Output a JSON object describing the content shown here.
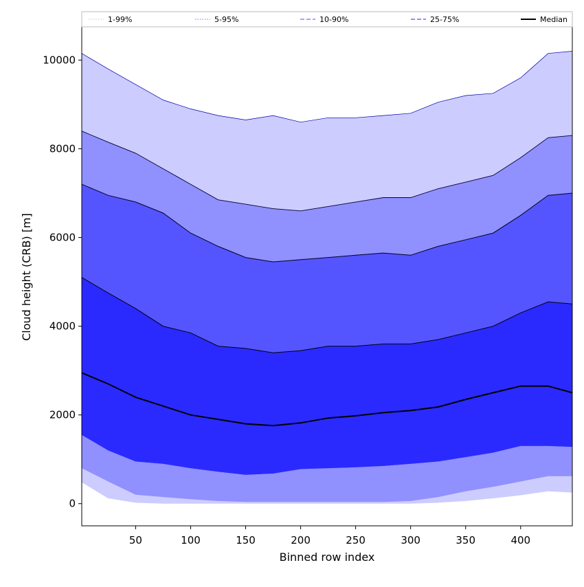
{
  "chart_data": {
    "type": "area",
    "xlabel": "Binned row index",
    "ylabel": "Cloud height (CRB) [m]",
    "xlim": [
      1,
      447
    ],
    "ylim": [
      -500,
      10750
    ],
    "xticks": [
      50,
      100,
      150,
      200,
      250,
      300,
      350,
      400
    ],
    "yticks": [
      0,
      2000,
      4000,
      6000,
      8000,
      10000
    ],
    "legend_position": "top",
    "x": [
      1,
      25,
      50,
      75,
      100,
      125,
      150,
      175,
      200,
      225,
      250,
      275,
      300,
      325,
      350,
      375,
      400,
      425,
      447
    ],
    "bands": [
      {
        "name": "1-99%",
        "color": "#ccccff",
        "lower": [
          480,
          120,
          20,
          0,
          0,
          0,
          0,
          0,
          0,
          0,
          0,
          0,
          0,
          20,
          60,
          120,
          190,
          280,
          250
        ],
        "upper": [
          10150,
          9800,
          9450,
          9100,
          8900,
          8750,
          8650,
          8750,
          8600,
          8700,
          8700,
          8750,
          8800,
          9050,
          9200,
          9250,
          9600,
          10150,
          10200
        ]
      },
      {
        "name": "5-95%",
        "color": "#9090ff",
        "lower": [
          800,
          500,
          200,
          150,
          100,
          60,
          40,
          40,
          40,
          40,
          40,
          40,
          60,
          150,
          280,
          380,
          500,
          620,
          620
        ]
      },
      {
        "name": "10-90%",
        "color": "#5555ff",
        "lower": [
          1550,
          1200,
          950,
          900,
          800,
          720,
          650,
          680,
          780,
          800,
          820,
          850,
          900,
          950,
          1050,
          1150,
          1300,
          1300,
          1280
        ]
      }
    ],
    "quantiles": {
      "p5_upper": [
        8400,
        8150,
        7900,
        7550,
        7200,
        6850,
        6750,
        6650,
        6600,
        6700,
        6800,
        6900,
        6900,
        7100,
        7250,
        7400,
        7800,
        8250,
        8300
      ],
      "p10_upper": [
        7200,
        6950,
        6800,
        6550,
        6100,
        5800,
        5550,
        5450,
        5500,
        5550,
        5600,
        5650,
        5600,
        5800,
        5950,
        6100,
        6500,
        6950,
        7000
      ],
      "p25_lower": [
        5100,
        4750,
        4400,
        4000,
        3850,
        3550,
        3500,
        3400,
        3450,
        3550,
        3550,
        3600,
        3600,
        3700,
        3850,
        4000,
        4300,
        4550,
        4500
      ]
    },
    "series": [
      {
        "name": "Median",
        "color": "#000000",
        "values": [
          2950,
          2700,
          2400,
          2200,
          2000,
          1900,
          1800,
          1760,
          1820,
          1930,
          1980,
          2050,
          2100,
          2180,
          2350,
          2500,
          2650,
          2650,
          2500
        ]
      }
    ],
    "fills": {
      "inner": "#2a2aff"
    },
    "legend": [
      {
        "label": "1-99%",
        "color": "#ccccff",
        "style": "dotted"
      },
      {
        "label": "5-95%",
        "color": "#9090ff",
        "style": "dotted"
      },
      {
        "label": "10-90%",
        "color": "#6d6dff",
        "style": "dashed"
      },
      {
        "label": "25-75%",
        "color": "#4b4bff",
        "style": "dashed"
      },
      {
        "label": "Median",
        "color": "#000000",
        "style": "solid"
      }
    ]
  }
}
